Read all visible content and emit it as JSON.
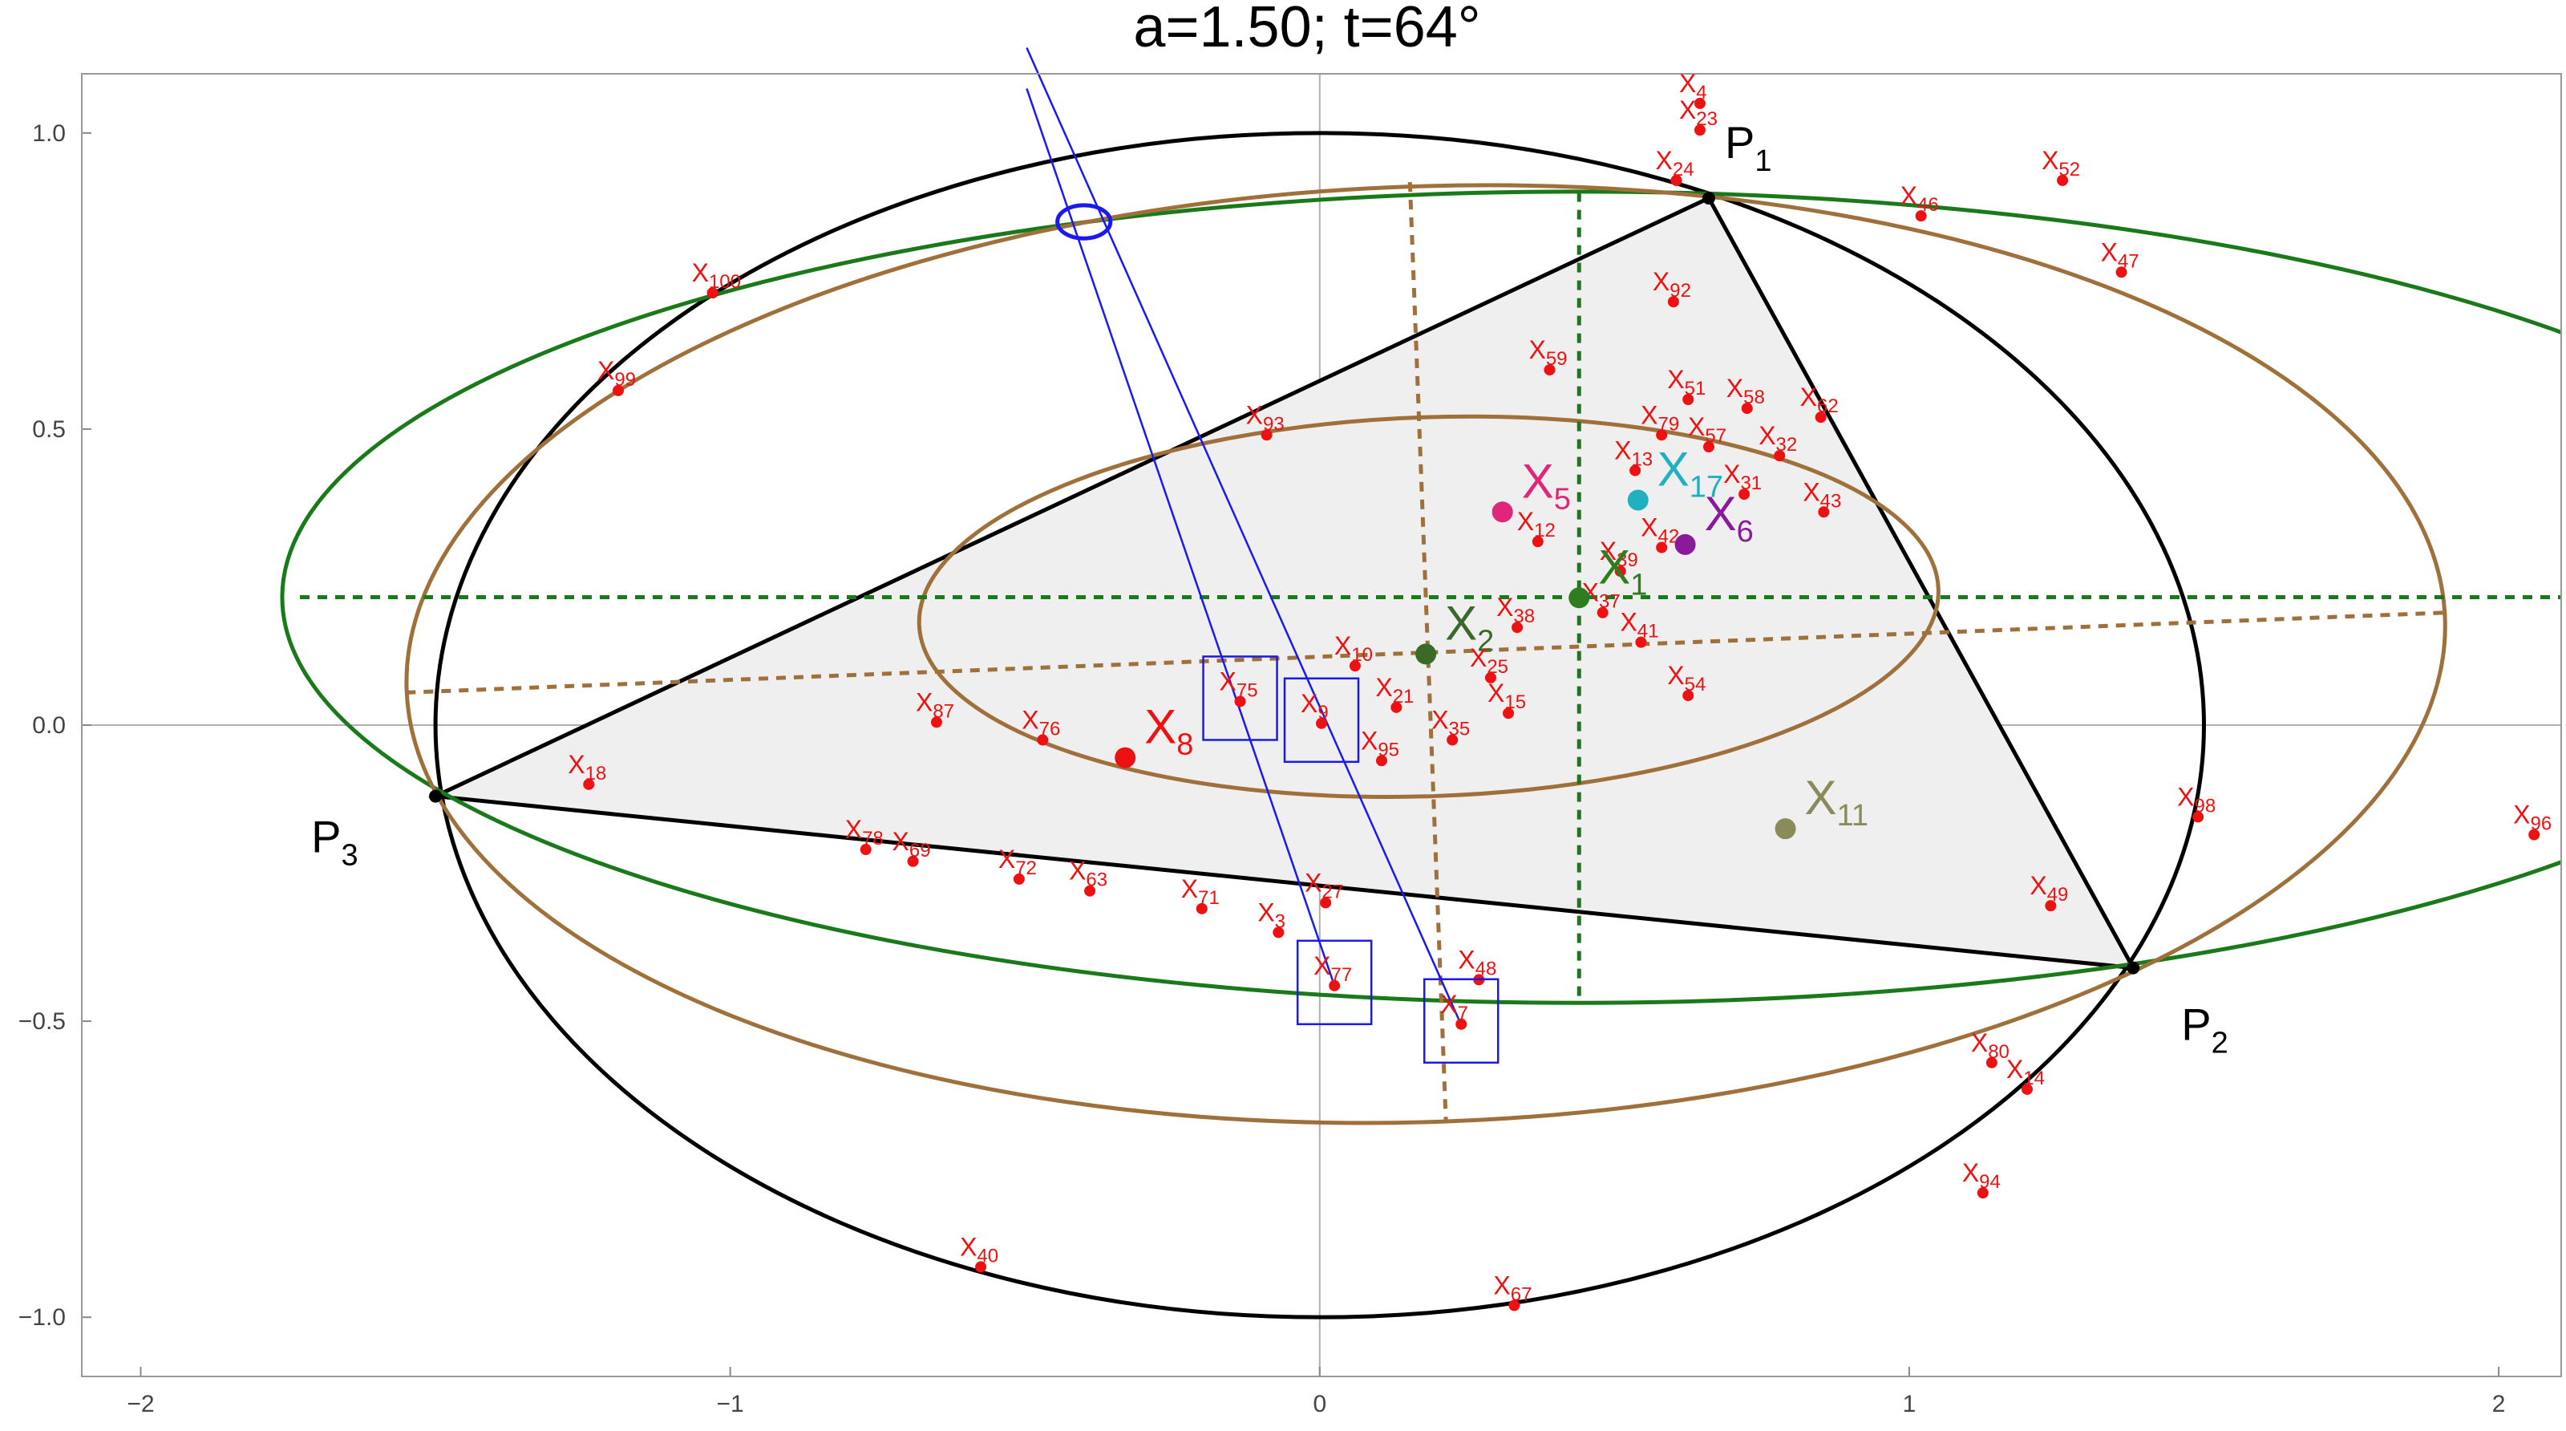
{
  "chart_data": {
    "type": "scatter",
    "title": "a=1.50; t=64°",
    "xlim": [
      -2.1,
      2.106
    ],
    "ylim": [
      -1.1,
      1.1
    ],
    "xticks": [
      {
        "value": -2,
        "label": "−2"
      },
      {
        "value": -1,
        "label": "−1"
      },
      0,
      1,
      2
    ],
    "yticks": [
      {
        "value": -1,
        "label": "−1.0"
      },
      {
        "value": -0.5,
        "label": "−0.5"
      },
      {
        "value": 0,
        "label": "0.0"
      },
      {
        "value": 0.5,
        "label": "0.5"
      },
      {
        "value": 1,
        "label": "1.0"
      }
    ],
    "point_color": "#ee1111",
    "triangle": [
      {
        "label": "P",
        "sub": "1",
        "x": 0.66,
        "y": 0.89
      },
      {
        "label": "P",
        "sub": "2",
        "x": 1.38,
        "y": -0.41
      },
      {
        "label": "P",
        "sub": "3",
        "x": -1.5,
        "y": -0.12
      }
    ],
    "triangle_fill": "#efefef",
    "ellipses": [
      {
        "cx": 0,
        "cy": 0,
        "rx": 1.5,
        "ry": 1,
        "rotation": 0,
        "color": "#000000"
      },
      {
        "cx": 0.44,
        "cy": 0.216,
        "rx": 2.2,
        "ry": 0.685,
        "rotation": 0,
        "color": "#1a7a1a"
      },
      {
        "cx": 0.18,
        "cy": 0.12,
        "rx": 1.73,
        "ry": 0.79,
        "rotation": 2,
        "color": "#a0703a"
      },
      {
        "cx": 0.185,
        "cy": 0.2,
        "rx": 0.865,
        "ry": 0.32,
        "rotation": 2,
        "color": "#a0703a"
      },
      {
        "cx": -0.4,
        "cy": 0.85,
        "rx": 0.045,
        "ry": 0.028,
        "rotation": 0,
        "color": "#1a1aee"
      }
    ],
    "segments": [
      {
        "x": [
          -1.73,
          2.106
        ],
        "y": [
          0.216,
          0.216
        ],
        "color": "#1a7a1a",
        "dashed": true
      },
      {
        "x": [
          0.44,
          0.44
        ],
        "y": [
          0.9,
          -0.47
        ],
        "color": "#1a7a1a",
        "dashed": true
      },
      {
        "x": [
          -1.55,
          1.91
        ],
        "y": [
          0.055,
          0.19
        ],
        "color": "#a0703a",
        "dashed": true
      },
      {
        "x": [
          0.153,
          0.214
        ],
        "y": [
          0.917,
          -0.667
        ],
        "color": "#a0703a",
        "dashed": true
      },
      {
        "x": [
          -0.497,
          0.239
        ],
        "y": [
          1.144,
          -0.504
        ],
        "color": "#1a1aee",
        "dashed": false
      },
      {
        "x": [
          -0.497,
          0.025
        ],
        "y": [
          1.075,
          -0.44
        ],
        "color": "#1a1aee",
        "dashed": false
      }
    ],
    "points": [
      {
        "label": "X",
        "sub": "100",
        "x": -1.03,
        "y": 0.73
      },
      {
        "label": "X",
        "sub": "99",
        "x": -1.19,
        "y": 0.565
      },
      {
        "label": "X",
        "sub": "93",
        "x": -0.09,
        "y": 0.49
      },
      {
        "label": "X",
        "sub": "87",
        "x": -0.65,
        "y": 0.005
      },
      {
        "label": "X",
        "sub": "76",
        "x": -0.47,
        "y": -0.025
      },
      {
        "label": "X",
        "sub": "8",
        "x": -0.33,
        "y": -0.055,
        "big": true
      },
      {
        "label": "X",
        "sub": "18",
        "x": -1.24,
        "y": -0.1
      },
      {
        "label": "X",
        "sub": "78",
        "x": -0.77,
        "y": -0.21
      },
      {
        "label": "X",
        "sub": "69",
        "x": -0.69,
        "y": -0.23
      },
      {
        "label": "X",
        "sub": "72",
        "x": -0.51,
        "y": -0.26
      },
      {
        "label": "X",
        "sub": "63",
        "x": -0.39,
        "y": -0.28
      },
      {
        "label": "X",
        "sub": "71",
        "x": -0.2,
        "y": -0.31
      },
      {
        "label": "X",
        "sub": "3",
        "x": -0.07,
        "y": -0.35
      },
      {
        "label": "X",
        "sub": "27",
        "x": 0.01,
        "y": -0.3
      },
      {
        "label": "X",
        "sub": "77",
        "x": 0.025,
        "y": -0.44,
        "boxed": true
      },
      {
        "label": "X",
        "sub": "75",
        "x": -0.135,
        "y": 0.04,
        "boxed": true
      },
      {
        "label": "X",
        "sub": "9",
        "x": 0.003,
        "y": 0.003,
        "boxed": true
      },
      {
        "label": "X",
        "sub": "10",
        "x": 0.06,
        "y": 0.1
      },
      {
        "label": "X",
        "sub": "21",
        "x": 0.13,
        "y": 0.03
      },
      {
        "label": "X",
        "sub": "95",
        "x": 0.105,
        "y": -0.06
      },
      {
        "label": "X",
        "sub": "35",
        "x": 0.225,
        "y": -0.025
      },
      {
        "label": "X",
        "sub": "2",
        "x": 0.18,
        "y": 0.12,
        "big": true,
        "color": "#3a6a2a"
      },
      {
        "label": "X",
        "sub": "15",
        "x": 0.32,
        "y": 0.02
      },
      {
        "label": "X",
        "sub": "25",
        "x": 0.29,
        "y": 0.08
      },
      {
        "label": "X",
        "sub": "38",
        "x": 0.335,
        "y": 0.165
      },
      {
        "label": "X",
        "sub": "12",
        "x": 0.37,
        "y": 0.31
      },
      {
        "label": "X",
        "sub": "37",
        "x": 0.48,
        "y": 0.19
      },
      {
        "label": "X",
        "sub": "39",
        "x": 0.51,
        "y": 0.26
      },
      {
        "label": "X",
        "sub": "42",
        "x": 0.58,
        "y": 0.3
      },
      {
        "label": "X",
        "sub": "41",
        "x": 0.545,
        "y": 0.14
      },
      {
        "label": "X",
        "sub": "54",
        "x": 0.625,
        "y": 0.05
      },
      {
        "label": "X",
        "sub": "1",
        "x": 0.44,
        "y": 0.215,
        "big": true,
        "color": "#2e7d1e"
      },
      {
        "label": "X",
        "sub": "5",
        "x": 0.31,
        "y": 0.36,
        "big": true,
        "color": "#e0267a"
      },
      {
        "label": "X",
        "sub": "17",
        "x": 0.54,
        "y": 0.38,
        "big": true,
        "color": "#20b0c0"
      },
      {
        "label": "X",
        "sub": "6",
        "x": 0.62,
        "y": 0.305,
        "big": true,
        "color": "#8b1a9a"
      },
      {
        "label": "X",
        "sub": "11",
        "x": 0.79,
        "y": -0.175,
        "big": true,
        "color": "#8b8b5a"
      },
      {
        "label": "X",
        "sub": "4",
        "x": 0.645,
        "y": 1.05
      },
      {
        "label": "X",
        "sub": "23",
        "x": 0.645,
        "y": 1.005
      },
      {
        "label": "X",
        "sub": "24",
        "x": 0.605,
        "y": 0.92
      },
      {
        "label": "X",
        "sub": "46",
        "x": 1.02,
        "y": 0.86
      },
      {
        "label": "X",
        "sub": "52",
        "x": 1.26,
        "y": 0.92
      },
      {
        "label": "X",
        "sub": "47",
        "x": 1.36,
        "y": 0.765
      },
      {
        "label": "X",
        "sub": "92",
        "x": 0.6,
        "y": 0.715
      },
      {
        "label": "X",
        "sub": "59",
        "x": 0.39,
        "y": 0.6
      },
      {
        "label": "X",
        "sub": "51",
        "x": 0.625,
        "y": 0.55
      },
      {
        "label": "X",
        "sub": "58",
        "x": 0.725,
        "y": 0.535
      },
      {
        "label": "X",
        "sub": "62",
        "x": 0.85,
        "y": 0.52
      },
      {
        "label": "X",
        "sub": "79",
        "x": 0.58,
        "y": 0.49
      },
      {
        "label": "X",
        "sub": "57",
        "x": 0.66,
        "y": 0.47
      },
      {
        "label": "X",
        "sub": "32",
        "x": 0.78,
        "y": 0.455
      },
      {
        "label": "X",
        "sub": "13",
        "x": 0.535,
        "y": 0.43
      },
      {
        "label": "X",
        "sub": "31",
        "x": 0.72,
        "y": 0.39
      },
      {
        "label": "X",
        "sub": "43",
        "x": 0.855,
        "y": 0.36
      },
      {
        "label": "X",
        "sub": "98",
        "x": 1.49,
        "y": -0.155
      },
      {
        "label": "X",
        "sub": "49",
        "x": 1.24,
        "y": -0.305
      },
      {
        "label": "X",
        "sub": "96",
        "x": 2.06,
        "y": -0.185
      },
      {
        "label": "X",
        "sub": "80",
        "x": 1.14,
        "y": -0.57
      },
      {
        "label": "X",
        "sub": "14",
        "x": 1.2,
        "y": -0.615
      },
      {
        "label": "X",
        "sub": "94",
        "x": 1.125,
        "y": -0.79
      },
      {
        "label": "X",
        "sub": "40",
        "x": -0.575,
        "y": -0.915
      },
      {
        "label": "X",
        "sub": "67",
        "x": 0.33,
        "y": -0.98
      },
      {
        "label": "X",
        "sub": "48",
        "x": 0.27,
        "y": -0.43
      },
      {
        "label": "X",
        "sub": "7",
        "x": 0.24,
        "y": -0.505,
        "boxed": true
      }
    ]
  }
}
